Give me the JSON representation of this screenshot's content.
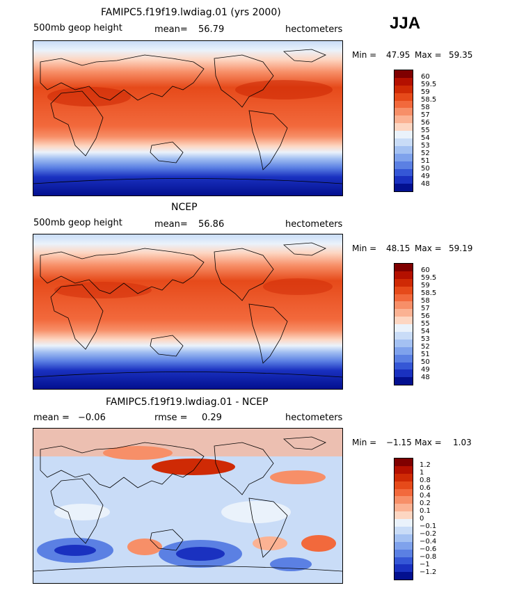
{
  "season": "JJA",
  "panels": [
    {
      "title": "FAMIPC5.f19f19.lwdiag.01 (yrs 2000)",
      "left_label": "500mb geop height",
      "mean_label": "mean=",
      "mean_value": "56.79",
      "units": "hectometers",
      "min_label": "Min =",
      "min_value": "47.95",
      "max_label": "Max =",
      "max_value": "59.35",
      "colorbar_labels": [
        "60",
        "59.5",
        "59",
        "58.5",
        "58",
        "57",
        "56",
        "55",
        "54",
        "53",
        "52",
        "51",
        "50",
        "49",
        "48"
      ]
    },
    {
      "title": "NCEP",
      "left_label": "500mb geop height",
      "mean_label": "mean=",
      "mean_value": "56.86",
      "units": "hectometers",
      "min_label": "Min =",
      "min_value": "48.15",
      "max_label": "Max =",
      "max_value": "59.19",
      "colorbar_labels": [
        "60",
        "59.5",
        "59",
        "58.5",
        "58",
        "57",
        "56",
        "55",
        "54",
        "53",
        "52",
        "51",
        "50",
        "49",
        "48"
      ]
    },
    {
      "title": "FAMIPC5.f19f19.lwdiag.01 - NCEP",
      "left_label": "mean =",
      "left_value": "−0.06",
      "rmse_label": "rmse =",
      "rmse_value": "0.29",
      "units": "hectometers",
      "min_label": "Min =",
      "min_value": "−1.15",
      "max_label": "Max =",
      "max_value": "1.03",
      "colorbar_labels": [
        "1.2",
        "1",
        "0.8",
        "0.6",
        "0.4",
        "0.2",
        "0.1",
        "0",
        "−0.1",
        "−0.2",
        "−0.4",
        "−0.6",
        "−0.8",
        "−1",
        "−1.2"
      ]
    }
  ],
  "colors": {
    "palette": [
      "#7f0000",
      "#b41000",
      "#cf2a05",
      "#e64a1a",
      "#f2693c",
      "#f78f68",
      "#fbb293",
      "#fdd6c2",
      "#eaf2fb",
      "#c9dcf7",
      "#a4c1f2",
      "#7fa2ec",
      "#5b80e3",
      "#3557d6",
      "#1a31c0",
      "#03108f"
    ]
  }
}
